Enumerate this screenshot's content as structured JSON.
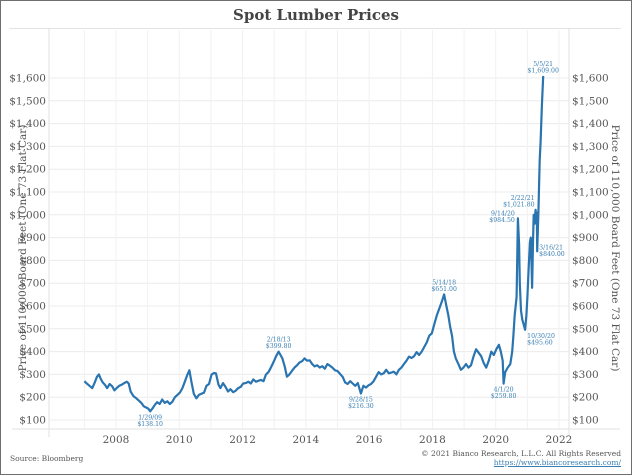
{
  "chart_data": {
    "type": "line",
    "title": "Spot Lumber Prices",
    "xlabel": "",
    "ylabel": "Price of 110,000 Board Feet (One 73 Flat Car)",
    "ylabel_right": "Price of 110,000 Board Feet (One 73 Flat Car)",
    "xlim": [
      2006.0,
      2022.35
    ],
    "ylim": [
      50,
      1680
    ],
    "grid": true,
    "legend": "none",
    "line_color": "#2a74b0",
    "x_ticks": [
      2008,
      2010,
      2012,
      2014,
      2016,
      2018,
      2020,
      2022
    ],
    "x_tick_labels": [
      "2008",
      "2010",
      "2012",
      "2014",
      "2016",
      "2018",
      "2020",
      "2022"
    ],
    "y_ticks": [
      100,
      200,
      300,
      400,
      500,
      600,
      700,
      800,
      900,
      1000,
      1100,
      1200,
      1300,
      1400,
      1500,
      1600
    ],
    "y_tick_labels": [
      "$100",
      "$200",
      "$300",
      "$400",
      "$500",
      "$600",
      "$700",
      "$800",
      "$900",
      "$1,000",
      "$1,100",
      "$1,200",
      "$1,300",
      "$1,400",
      "$1,500",
      "$1,600"
    ],
    "series": [
      {
        "name": "Spot Lumber Price",
        "points": [
          [
            2007.0,
            270
          ],
          [
            2007.06,
            262
          ],
          [
            2007.12,
            255
          ],
          [
            2007.18,
            248
          ],
          [
            2007.25,
            240
          ],
          [
            2007.32,
            262
          ],
          [
            2007.4,
            290
          ],
          [
            2007.46,
            300
          ],
          [
            2007.52,
            280
          ],
          [
            2007.58,
            265
          ],
          [
            2007.65,
            255
          ],
          [
            2007.72,
            240
          ],
          [
            2007.8,
            258
          ],
          [
            2007.88,
            248
          ],
          [
            2007.95,
            230
          ],
          [
            2008.02,
            240
          ],
          [
            2008.1,
            250
          ],
          [
            2008.18,
            255
          ],
          [
            2008.26,
            262
          ],
          [
            2008.34,
            268
          ],
          [
            2008.4,
            260
          ],
          [
            2008.46,
            225
          ],
          [
            2008.55,
            205
          ],
          [
            2008.64,
            195
          ],
          [
            2008.72,
            185
          ],
          [
            2008.8,
            175
          ],
          [
            2008.88,
            160
          ],
          [
            2008.95,
            155
          ],
          [
            2009.02,
            150
          ],
          [
            2009.08,
            138
          ],
          [
            2009.15,
            150
          ],
          [
            2009.22,
            165
          ],
          [
            2009.3,
            178
          ],
          [
            2009.38,
            170
          ],
          [
            2009.46,
            190
          ],
          [
            2009.54,
            175
          ],
          [
            2009.62,
            182
          ],
          [
            2009.7,
            170
          ],
          [
            2009.78,
            180
          ],
          [
            2009.86,
            200
          ],
          [
            2009.94,
            210
          ],
          [
            2010.02,
            220
          ],
          [
            2010.1,
            240
          ],
          [
            2010.18,
            270
          ],
          [
            2010.26,
            300
          ],
          [
            2010.32,
            318
          ],
          [
            2010.38,
            270
          ],
          [
            2010.46,
            215
          ],
          [
            2010.54,
            195
          ],
          [
            2010.62,
            210
          ],
          [
            2010.7,
            215
          ],
          [
            2010.78,
            220
          ],
          [
            2010.86,
            250
          ],
          [
            2010.94,
            258
          ],
          [
            2011.02,
            300
          ],
          [
            2011.1,
            306
          ],
          [
            2011.16,
            304
          ],
          [
            2011.24,
            255
          ],
          [
            2011.3,
            240
          ],
          [
            2011.38,
            262
          ],
          [
            2011.46,
            245
          ],
          [
            2011.54,
            225
          ],
          [
            2011.62,
            235
          ],
          [
            2011.7,
            222
          ],
          [
            2011.78,
            228
          ],
          [
            2011.86,
            240
          ],
          [
            2011.94,
            245
          ],
          [
            2012.02,
            260
          ],
          [
            2012.1,
            262
          ],
          [
            2012.18,
            268
          ],
          [
            2012.26,
            260
          ],
          [
            2012.34,
            278
          ],
          [
            2012.42,
            268
          ],
          [
            2012.5,
            272
          ],
          [
            2012.58,
            276
          ],
          [
            2012.66,
            270
          ],
          [
            2012.74,
            300
          ],
          [
            2012.82,
            310
          ],
          [
            2012.9,
            332
          ],
          [
            2012.98,
            355
          ],
          [
            2013.06,
            380
          ],
          [
            2013.14,
            399.8
          ],
          [
            2013.2,
            385
          ],
          [
            2013.26,
            370
          ],
          [
            2013.34,
            330
          ],
          [
            2013.4,
            290
          ],
          [
            2013.48,
            300
          ],
          [
            2013.56,
            315
          ],
          [
            2013.64,
            330
          ],
          [
            2013.72,
            340
          ],
          [
            2013.8,
            352
          ],
          [
            2013.88,
            358
          ],
          [
            2013.96,
            370
          ],
          [
            2014.04,
            360
          ],
          [
            2014.12,
            362
          ],
          [
            2014.2,
            345
          ],
          [
            2014.28,
            335
          ],
          [
            2014.36,
            340
          ],
          [
            2014.44,
            330
          ],
          [
            2014.52,
            336
          ],
          [
            2014.6,
            325
          ],
          [
            2014.68,
            345
          ],
          [
            2014.76,
            338
          ],
          [
            2014.84,
            330
          ],
          [
            2014.92,
            318
          ],
          [
            2015.0,
            315
          ],
          [
            2015.08,
            302
          ],
          [
            2015.16,
            290
          ],
          [
            2015.24,
            265
          ],
          [
            2015.32,
            258
          ],
          [
            2015.4,
            270
          ],
          [
            2015.48,
            260
          ],
          [
            2015.56,
            250
          ],
          [
            2015.64,
            262
          ],
          [
            2015.74,
            216.3
          ],
          [
            2015.82,
            250
          ],
          [
            2015.9,
            242
          ],
          [
            2015.98,
            252
          ],
          [
            2016.06,
            258
          ],
          [
            2016.14,
            270
          ],
          [
            2016.22,
            290
          ],
          [
            2016.3,
            310
          ],
          [
            2016.38,
            300
          ],
          [
            2016.46,
            305
          ],
          [
            2016.54,
            320
          ],
          [
            2016.62,
            305
          ],
          [
            2016.7,
            308
          ],
          [
            2016.78,
            312
          ],
          [
            2016.86,
            300
          ],
          [
            2016.94,
            320
          ],
          [
            2017.02,
            330
          ],
          [
            2017.1,
            345
          ],
          [
            2017.18,
            360
          ],
          [
            2017.26,
            378
          ],
          [
            2017.34,
            372
          ],
          [
            2017.42,
            380
          ],
          [
            2017.5,
            398
          ],
          [
            2017.58,
            385
          ],
          [
            2017.66,
            400
          ],
          [
            2017.74,
            420
          ],
          [
            2017.82,
            440
          ],
          [
            2017.9,
            470
          ],
          [
            2017.98,
            480
          ],
          [
            2018.06,
            520
          ],
          [
            2018.14,
            560
          ],
          [
            2018.22,
            590
          ],
          [
            2018.3,
            620
          ],
          [
            2018.37,
            651
          ],
          [
            2018.44,
            600
          ],
          [
            2018.5,
            560
          ],
          [
            2018.56,
            510
          ],
          [
            2018.62,
            470
          ],
          [
            2018.68,
            400
          ],
          [
            2018.74,
            370
          ],
          [
            2018.82,
            345
          ],
          [
            2018.9,
            320
          ],
          [
            2018.98,
            330
          ],
          [
            2019.06,
            345
          ],
          [
            2019.14,
            330
          ],
          [
            2019.22,
            340
          ],
          [
            2019.3,
            380
          ],
          [
            2019.38,
            410
          ],
          [
            2019.46,
            395
          ],
          [
            2019.54,
            380
          ],
          [
            2019.62,
            350
          ],
          [
            2019.7,
            330
          ],
          [
            2019.78,
            360
          ],
          [
            2019.86,
            400
          ],
          [
            2019.94,
            385
          ],
          [
            2020.02,
            410
          ],
          [
            2020.1,
            430
          ],
          [
            2020.16,
            400
          ],
          [
            2020.22,
            360
          ],
          [
            2020.25,
            259.8
          ],
          [
            2020.3,
            310
          ],
          [
            2020.38,
            330
          ],
          [
            2020.46,
            345
          ],
          [
            2020.52,
            400
          ],
          [
            2020.56,
            470
          ],
          [
            2020.6,
            560
          ],
          [
            2020.66,
            640
          ],
          [
            2020.7,
            984.5
          ],
          [
            2020.74,
            870
          ],
          [
            2020.76,
            700
          ],
          [
            2020.8,
            580
          ],
          [
            2020.84,
            540
          ],
          [
            2020.88,
            520
          ],
          [
            2020.93,
            495.6
          ],
          [
            2020.97,
            560
          ],
          [
            2021.0,
            640
          ],
          [
            2021.04,
            760
          ],
          [
            2021.08,
            880
          ],
          [
            2021.11,
            900
          ],
          [
            2021.13,
            790
          ],
          [
            2021.15,
            680
          ],
          [
            2021.18,
            900
          ],
          [
            2021.2,
            1000
          ],
          [
            2021.22,
            960
          ],
          [
            2021.26,
            1021.8
          ],
          [
            2021.29,
            960
          ],
          [
            2021.3,
            1010
          ],
          [
            2021.31,
            840
          ],
          [
            2021.35,
            1010
          ],
          [
            2021.39,
            1240
          ],
          [
            2021.42,
            1320
          ],
          [
            2021.46,
            1480
          ],
          [
            2021.5,
            1609
          ]
        ]
      }
    ],
    "annotations": [
      {
        "date": "1/29/09",
        "value": "$138.10",
        "x": 2009.08,
        "y": 138.1,
        "pos": "below"
      },
      {
        "date": "2/18/13",
        "value": "$399.80",
        "x": 2013.14,
        "y": 399.8,
        "pos": "above"
      },
      {
        "date": "9/28/15",
        "value": "$216.30",
        "x": 2015.74,
        "y": 216.3,
        "pos": "below"
      },
      {
        "date": "5/14/18",
        "value": "$651.00",
        "x": 2018.37,
        "y": 651.0,
        "pos": "above"
      },
      {
        "date": "4/1/20",
        "value": "$259.80",
        "x": 2020.25,
        "y": 259.8,
        "pos": "below"
      },
      {
        "date": "9/14/20",
        "value": "$984.50",
        "x": 2020.7,
        "y": 984.5,
        "pos": "left"
      },
      {
        "date": "10/30/20",
        "value": "$495.60",
        "x": 2020.93,
        "y": 495.6,
        "pos": "below-right"
      },
      {
        "date": "2/22/21",
        "value": "$1,021.80",
        "x": 2021.26,
        "y": 1021.8,
        "pos": "above-left"
      },
      {
        "date": "3/16/21",
        "value": "$840.00",
        "x": 2021.31,
        "y": 840.0,
        "pos": "right"
      },
      {
        "date": "5/5/21",
        "value": "$1,609.00",
        "x": 2021.5,
        "y": 1609.0,
        "pos": "above"
      }
    ]
  },
  "footer": {
    "source": "Source: Bloomberg",
    "copyright": "© 2021 Bianco Research, L.L.C. All Rights Reserved",
    "url": "https://www.biancoresearch.com/"
  }
}
